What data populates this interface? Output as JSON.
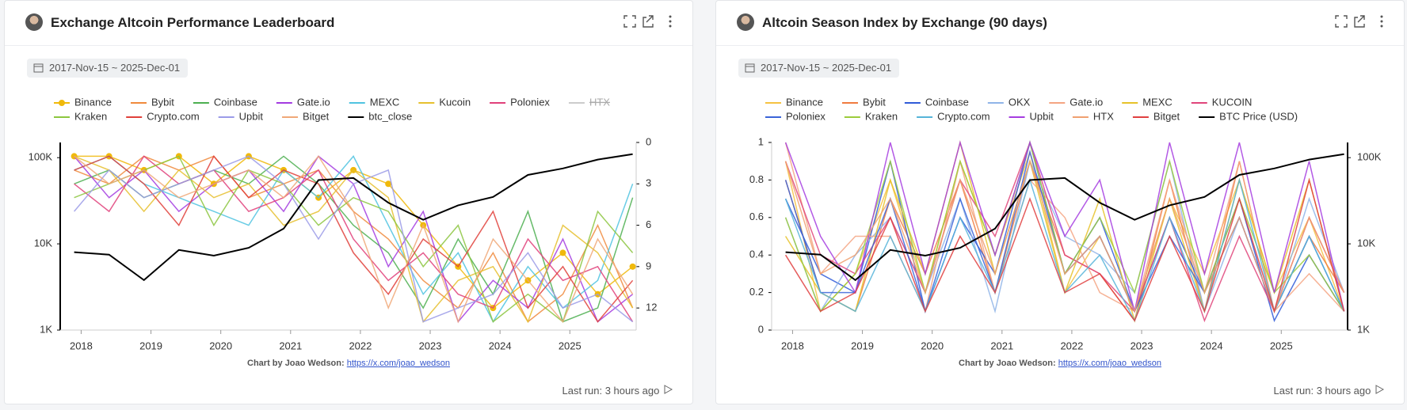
{
  "cards": [
    {
      "title": "Exchange Altcoin Performance Leaderboard",
      "date_range": "2017-Nov-15 ~ 2025-Dec-01",
      "credit": "Chart by Joao Wedson:",
      "credit_link": "https://x.com/joao_wedson",
      "last_run": "Last run: 3 hours ago",
      "chart_data": {
        "type": "line",
        "x": [
          2017.9,
          2018.4,
          2018.9,
          2019.4,
          2019.9,
          2020.4,
          2020.9,
          2021.4,
          2021.9,
          2022.4,
          2022.9,
          2023.4,
          2023.9,
          2024.4,
          2024.9,
          2025.4,
          2025.9
        ],
        "xlim": [
          2017.7,
          2025.95
        ],
        "xticks": [
          2018,
          2019,
          2020,
          2021,
          2022,
          2023,
          2024,
          2025
        ],
        "ylim": [
          1000,
          150000
        ],
        "ylog": true,
        "yticks": [
          {
            "value": 1000,
            "label": "1K"
          },
          {
            "value": 10000,
            "label": "10K"
          },
          {
            "value": 100000,
            "label": "100K"
          }
        ],
        "y2lim": [
          13.6,
          0
        ],
        "y2ticks": [
          0,
          3,
          6,
          9,
          12
        ],
        "grid": false,
        "series": [
          {
            "name": "Binance",
            "color": "#f0b90b",
            "marker": "circle",
            "axis": "y2",
            "values": [
              1,
              1,
              2,
              1,
              3,
              1,
              2,
              4,
              2,
              3,
              6,
              9,
              12,
              10,
              8,
              11,
              9
            ]
          },
          {
            "name": "Bybit",
            "color": "#f08a3c",
            "axis": "y2",
            "values": [
              2,
              3,
              1,
              2,
              1,
              4,
              3,
              2,
              5,
              7,
              10,
              12,
              8,
              13,
              11,
              6,
              12
            ]
          },
          {
            "name": "Coinbase",
            "color": "#4caf50",
            "axis": "y2",
            "values": [
              3,
              2,
              4,
              3,
              2,
              3,
              1,
              3,
              6,
              8,
              12,
              7,
              11,
              5,
              13,
              12,
              4
            ]
          },
          {
            "name": "Gate.io",
            "color": "#a33be0",
            "axis": "y2",
            "values": [
              1,
              4,
              2,
              5,
              3,
              2,
              5,
              1,
              3,
              9,
              5,
              13,
              10,
              12,
              7,
              13,
              11
            ]
          },
          {
            "name": "MEXC",
            "color": "#4fc3e0",
            "axis": "y2",
            "values": [
              2,
              1,
              3,
              4,
              5,
              6,
              2,
              4,
              1,
              6,
              11,
              8,
              13,
              9,
              12,
              10,
              3
            ]
          },
          {
            "name": "Kucoin",
            "color": "#e6c02e",
            "axis": "y2",
            "values": [
              1,
              2,
              5,
              2,
              4,
              3,
              6,
              5,
              2,
              4,
              13,
              10,
              9,
              13,
              6,
              8,
              12
            ]
          },
          {
            "name": "Poloniex",
            "color": "#e0407a",
            "axis": "y2",
            "values": [
              3,
              5,
              1,
              3,
              2,
              5,
              4,
              2,
              7,
              10,
              8,
              11,
              12,
              7,
              10,
              9,
              13
            ]
          },
          {
            "name": "HTX",
            "color": "#bbbbbb",
            "axis": "y2",
            "hidden": true
          },
          {
            "name": "Kraken",
            "color": "#8cc63f",
            "axis": "y2",
            "values": [
              4,
              3,
              2,
              1,
              6,
              2,
              3,
              6,
              4,
              5,
              9,
              6,
              13,
              11,
              13,
              5,
              8
            ]
          },
          {
            "name": "Crypto.com",
            "color": "#e0403a",
            "axis": "y2",
            "values": [
              2,
              1,
              3,
              6,
              1,
              4,
              2,
              3,
              8,
              11,
              7,
              9,
              5,
              12,
              9,
              13,
              10
            ]
          },
          {
            "name": "Upbit",
            "color": "#9b9be8",
            "axis": "y2",
            "values": [
              5,
              2,
              4,
              3,
              2,
              1,
              3,
              7,
              3,
              2,
              13,
              12,
              11,
              8,
              12,
              11,
              13
            ]
          },
          {
            "name": "Bitget",
            "color": "#f0a878",
            "axis": "y2",
            "values": [
              1,
              3,
              2,
              4,
              3,
              2,
              4,
              1,
              5,
              12,
              6,
              13,
              7,
              10,
              13,
              7,
              11
            ]
          },
          {
            "name": "btc_close",
            "color": "#000000",
            "width": 2,
            "values": [
              8000,
              7500,
              3800,
              8500,
              7300,
              9000,
              15000,
              55000,
              58000,
              30000,
              19000,
              28000,
              35000,
              63000,
              75000,
              95000,
              110000
            ]
          }
        ]
      }
    },
    {
      "title": "Altcoin Season Index by Exchange (90 days)",
      "date_range": "2017-Nov-15 ~ 2025-Dec-01",
      "credit": "Chart by Joao Wedson:",
      "credit_link": "https://x.com/joao_wedson",
      "last_run": "Last run: 3 hours ago",
      "chart_data": {
        "type": "line",
        "x": [
          2017.9,
          2018.4,
          2018.9,
          2019.4,
          2019.9,
          2020.4,
          2020.9,
          2021.4,
          2021.9,
          2022.4,
          2022.9,
          2023.4,
          2023.9,
          2024.4,
          2024.9,
          2025.4,
          2025.9
        ],
        "xlim": [
          2017.7,
          2025.95
        ],
        "xticks": [
          2018,
          2019,
          2020,
          2021,
          2022,
          2023,
          2024,
          2025
        ],
        "ylim": [
          0,
          1
        ],
        "yticks": [
          0,
          0.2,
          0.4,
          0.6,
          0.8,
          1
        ],
        "y2lim": [
          1000,
          150000
        ],
        "y2log": true,
        "y2ticks": [
          {
            "value": 1000,
            "label": "1K"
          },
          {
            "value": 10000,
            "label": "10K"
          },
          {
            "value": 100000,
            "label": "100K"
          }
        ],
        "grid": false,
        "series": [
          {
            "name": "Binance",
            "color": "#f5c242",
            "values": [
              0.9,
              0.1,
              0.3,
              0.8,
              0.2,
              0.9,
              0.4,
              0.95,
              0.2,
              0.5,
              0.1,
              0.7,
              0.3,
              0.8,
              0.2,
              0.6,
              0.1
            ]
          },
          {
            "name": "Bybit",
            "color": "#f07b3f",
            "values": [
              0.8,
              0.2,
              0.1,
              0.7,
              0.3,
              0.8,
              0.2,
              0.9,
              0.4,
              0.3,
              0.05,
              0.8,
              0.1,
              0.9,
              0.1,
              0.5,
              0.2
            ]
          },
          {
            "name": "Coinbase",
            "color": "#2f5bd8",
            "values": [
              0.7,
              0.3,
              0.2,
              0.9,
              0.1,
              0.6,
              0.3,
              1,
              0.3,
              0.6,
              0.1,
              0.6,
              0.2,
              0.7,
              0.05,
              0.4,
              0.1
            ]
          },
          {
            "name": "OKX",
            "color": "#8fb4e8",
            "values": [
              0.6,
              0.1,
              0.4,
              0.6,
              0.2,
              0.7,
              0.1,
              0.9,
              0.5,
              0.4,
              0.2,
              0.9,
              0.1,
              0.6,
              0.1,
              0.7,
              0.2
            ]
          },
          {
            "name": "Gate.io",
            "color": "#f4a582",
            "values": [
              1,
              0.3,
              0.5,
              0.5,
              0.1,
              0.9,
              0.2,
              0.8,
              0.6,
              0.2,
              0.1,
              0.8,
              0.2,
              0.9,
              0.1,
              0.3,
              0.1
            ]
          },
          {
            "name": "MEXC",
            "color": "#e6c229",
            "values": [
              0.5,
              0.2,
              0.1,
              0.8,
              0.3,
              1,
              0.3,
              0.9,
              0.2,
              0.7,
              0.05,
              0.7,
              0.1,
              0.8,
              0.2,
              0.8,
              0.1
            ]
          },
          {
            "name": "KUCOIN",
            "color": "#e0457b",
            "values": [
              0.9,
              0.4,
              0.3,
              0.6,
              0.2,
              0.8,
              0.5,
              1,
              0.4,
              0.3,
              0.1,
              0.6,
              0.05,
              0.5,
              0.1,
              0.6,
              0.2
            ]
          },
          {
            "name": "Poloniex",
            "color": "#3a64d8",
            "values": [
              0.8,
              0.2,
              0.2,
              0.7,
              0.1,
              0.7,
              0.2,
              0.95,
              0.3,
              0.5,
              0.1,
              0.5,
              0.2,
              0.6,
              0.1,
              0.5,
              0.1
            ]
          },
          {
            "name": "Kraken",
            "color": "#9ccc3c",
            "values": [
              0.6,
              0.1,
              0.3,
              0.9,
              0.2,
              0.9,
              0.4,
              1,
              0.3,
              0.6,
              0.2,
              0.9,
              0.2,
              0.7,
              0.2,
              0.4,
              0.1
            ]
          },
          {
            "name": "Crypto.com",
            "color": "#56b4d9",
            "values": [
              0.7,
              0.2,
              0.1,
              0.5,
              0.1,
              0.6,
              0.2,
              0.8,
              0.2,
              0.4,
              0.05,
              0.6,
              0.1,
              0.8,
              0.1,
              0.5,
              0.1
            ]
          },
          {
            "name": "Upbit",
            "color": "#a63de0",
            "values": [
              1,
              0.5,
              0.2,
              1,
              0.3,
              1,
              0.4,
              1,
              0.5,
              0.8,
              0.1,
              1,
              0.3,
              1,
              0.2,
              0.9,
              0.1
            ]
          },
          {
            "name": "HTX",
            "color": "#f0a070",
            "values": [
              0.9,
              0.3,
              0.4,
              0.7,
              0.2,
              0.8,
              0.3,
              0.9,
              0.3,
              0.5,
              0.1,
              0.7,
              0.2,
              0.6,
              0.1,
              0.6,
              0.2
            ]
          },
          {
            "name": "Bitget",
            "color": "#e04040",
            "values": [
              0.4,
              0.1,
              0.2,
              0.6,
              0.1,
              0.5,
              0.2,
              0.7,
              0.2,
              0.3,
              0.05,
              0.5,
              0.1,
              0.7,
              0.1,
              0.8,
              0.1
            ]
          },
          {
            "name": "BTC Price (USD)",
            "color": "#000000",
            "width": 2,
            "axis": "y2",
            "values": [
              8000,
              7500,
              3800,
              8500,
              7300,
              9000,
              15000,
              55000,
              58000,
              30000,
              19000,
              28000,
              35000,
              63000,
              75000,
              95000,
              110000
            ]
          }
        ]
      }
    }
  ]
}
